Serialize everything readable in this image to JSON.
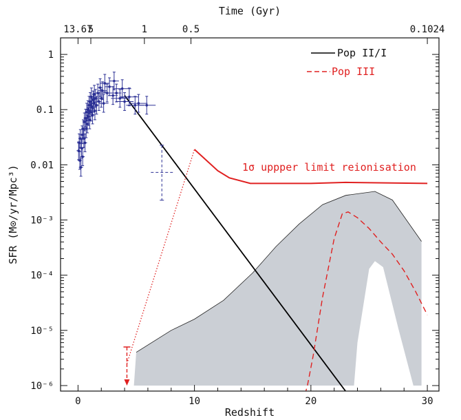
{
  "chart_data": {
    "type": "line",
    "xlabel": "Redshift",
    "x2label": "Time (Gyr)",
    "ylabel": "SFR (M⊙/yr/Mpc³)",
    "xlim": [
      -1.5,
      31
    ],
    "ylim_log10": [
      -6.1,
      0.3
    ],
    "yscale": "log",
    "x_ticks": [
      0,
      10,
      20,
      30
    ],
    "y_ticks": [
      {
        "v": 1,
        "label": "1"
      },
      {
        "v": 0.1,
        "label": "0.1"
      },
      {
        "v": 0.01,
        "label": "0.01"
      },
      {
        "v": 0.001,
        "label": "10⁻³"
      },
      {
        "v": 0.0001,
        "label": "10⁻⁴"
      },
      {
        "v": 1e-05,
        "label": "10⁻⁵"
      },
      {
        "v": 1e-06,
        "label": "10⁻⁶"
      }
    ],
    "top_ticks": [
      {
        "z": 0,
        "label": "13.67"
      },
      {
        "z": 1.1,
        "label": "5"
      },
      {
        "z": 5.7,
        "label": "1"
      },
      {
        "z": 9.7,
        "label": "0.5"
      },
      {
        "z": 30,
        "label": "0.1024"
      }
    ],
    "legend": [
      {
        "name": "Pop II/I",
        "style": "solid",
        "color": "#000000"
      },
      {
        "name": "Pop III",
        "style": "dashed",
        "color": "#e02020",
        "band": "#cbcfd5"
      }
    ],
    "annotation": "1σ uppper limit reionisation",
    "colors": {
      "pop2": "#000000",
      "pop3": "#e02020",
      "data": "#2a2f94",
      "band": "#cbcfd5",
      "limit": "#e02020"
    },
    "series": [
      {
        "name": "Pop II/I",
        "x": [
          4.0,
          23.0
        ],
        "y": [
          0.18,
          7.8e-07
        ]
      },
      {
        "name": "Pop III",
        "x": [
          19.5,
          19.7,
          20.2,
          21.0,
          22.0,
          22.7,
          23.2,
          24.0,
          25.0,
          26.0,
          27.0,
          28.0,
          29.0,
          30.0
        ],
        "y": [
          7e-07,
          1e-06,
          3.5e-06,
          4e-05,
          0.00046,
          0.0013,
          0.0014,
          0.0011,
          0.0007,
          0.0004,
          0.00024,
          0.00012,
          5e-05,
          1.9e-05
        ]
      },
      {
        "name": "1σ uppper limit reionisation",
        "x": [
          10.0,
          12.0,
          13.0,
          14.8,
          20.0,
          23.0,
          30.0
        ],
        "y": [
          0.019,
          0.0078,
          0.0058,
          0.0046,
          0.0046,
          0.0048,
          0.0046
        ]
      }
    ],
    "extrapolation": {
      "x": [
        4.2,
        10.0
      ],
      "y": [
        2.5e-06,
        0.019
      ]
    },
    "upper_limit_arrow": {
      "x": 4.2,
      "y_top": 5e-06,
      "y_bottom": 1e-06
    },
    "band": {
      "upper": {
        "x": [
          5.0,
          8.0,
          10.0,
          12.5,
          15.0,
          17.0,
          19.0,
          21.0,
          23.0,
          25.5,
          27.0,
          29.5
        ],
        "y": [
          4e-06,
          1e-05,
          1.6e-05,
          3.5e-05,
          0.00011,
          0.00033,
          0.00085,
          0.0019,
          0.0028,
          0.0033,
          0.0023,
          0.00041
        ]
      },
      "lower": {
        "x": [
          29.5,
          28.8,
          27.5,
          26.2,
          25.5,
          25.0,
          24.0,
          23.7,
          4.8
        ],
        "y": [
          1e-06,
          1e-06,
          1.1e-05,
          0.00014,
          0.00018,
          0.00013,
          6e-06,
          1e-06,
          1e-06
        ]
      }
    },
    "observations": [
      {
        "x": 0.05,
        "y": 0.018
      },
      {
        "x": 0.1,
        "y": 0.025
      },
      {
        "x": 0.15,
        "y": 0.012
      },
      {
        "x": 0.2,
        "y": 0.03
      },
      {
        "x": 0.25,
        "y": 0.009
      },
      {
        "x": 0.3,
        "y": 0.02
      },
      {
        "x": 0.35,
        "y": 0.035
      },
      {
        "x": 0.4,
        "y": 0.014
      },
      {
        "x": 0.45,
        "y": 0.045
      },
      {
        "x": 0.5,
        "y": 0.03
      },
      {
        "x": 0.55,
        "y": 0.06
      },
      {
        "x": 0.6,
        "y": 0.025
      },
      {
        "x": 0.65,
        "y": 0.07
      },
      {
        "x": 0.7,
        "y": 0.045
      },
      {
        "x": 0.75,
        "y": 0.09
      },
      {
        "x": 0.8,
        "y": 0.055
      },
      {
        "x": 0.85,
        "y": 0.1
      },
      {
        "x": 0.9,
        "y": 0.075
      },
      {
        "x": 0.95,
        "y": 0.12
      },
      {
        "x": 1.0,
        "y": 0.065
      },
      {
        "x": 1.05,
        "y": 0.14
      },
      {
        "x": 1.1,
        "y": 0.09
      },
      {
        "x": 1.15,
        "y": 0.17
      },
      {
        "x": 1.2,
        "y": 0.11
      },
      {
        "x": 1.25,
        "y": 0.08
      },
      {
        "x": 1.3,
        "y": 0.15
      },
      {
        "x": 1.35,
        "y": 0.13
      },
      {
        "x": 1.4,
        "y": 0.19
      },
      {
        "x": 1.45,
        "y": 0.095
      },
      {
        "x": 1.5,
        "y": 0.16
      },
      {
        "x": 1.6,
        "y": 0.12
      },
      {
        "x": 1.7,
        "y": 0.2
      },
      {
        "x": 1.8,
        "y": 0.14
      },
      {
        "x": 1.9,
        "y": 0.25
      },
      {
        "x": 2.0,
        "y": 0.16
      },
      {
        "x": 2.1,
        "y": 0.22
      },
      {
        "x": 2.2,
        "y": 0.13
      },
      {
        "x": 2.3,
        "y": 0.3
      },
      {
        "x": 2.5,
        "y": 0.2
      },
      {
        "x": 2.7,
        "y": 0.26
      },
      {
        "x": 3.0,
        "y": 0.18
      },
      {
        "x": 3.1,
        "y": 0.33
      },
      {
        "x": 3.3,
        "y": 0.2
      },
      {
        "x": 3.6,
        "y": 0.16
      },
      {
        "x": 3.8,
        "y": 0.24
      },
      {
        "x": 4.0,
        "y": 0.14
      },
      {
        "x": 4.4,
        "y": 0.17
      },
      {
        "x": 4.9,
        "y": 0.12
      },
      {
        "x": 5.2,
        "y": 0.13
      },
      {
        "x": 5.9,
        "y": 0.12
      },
      {
        "x": 7.2,
        "y": 0.0073
      }
    ]
  }
}
